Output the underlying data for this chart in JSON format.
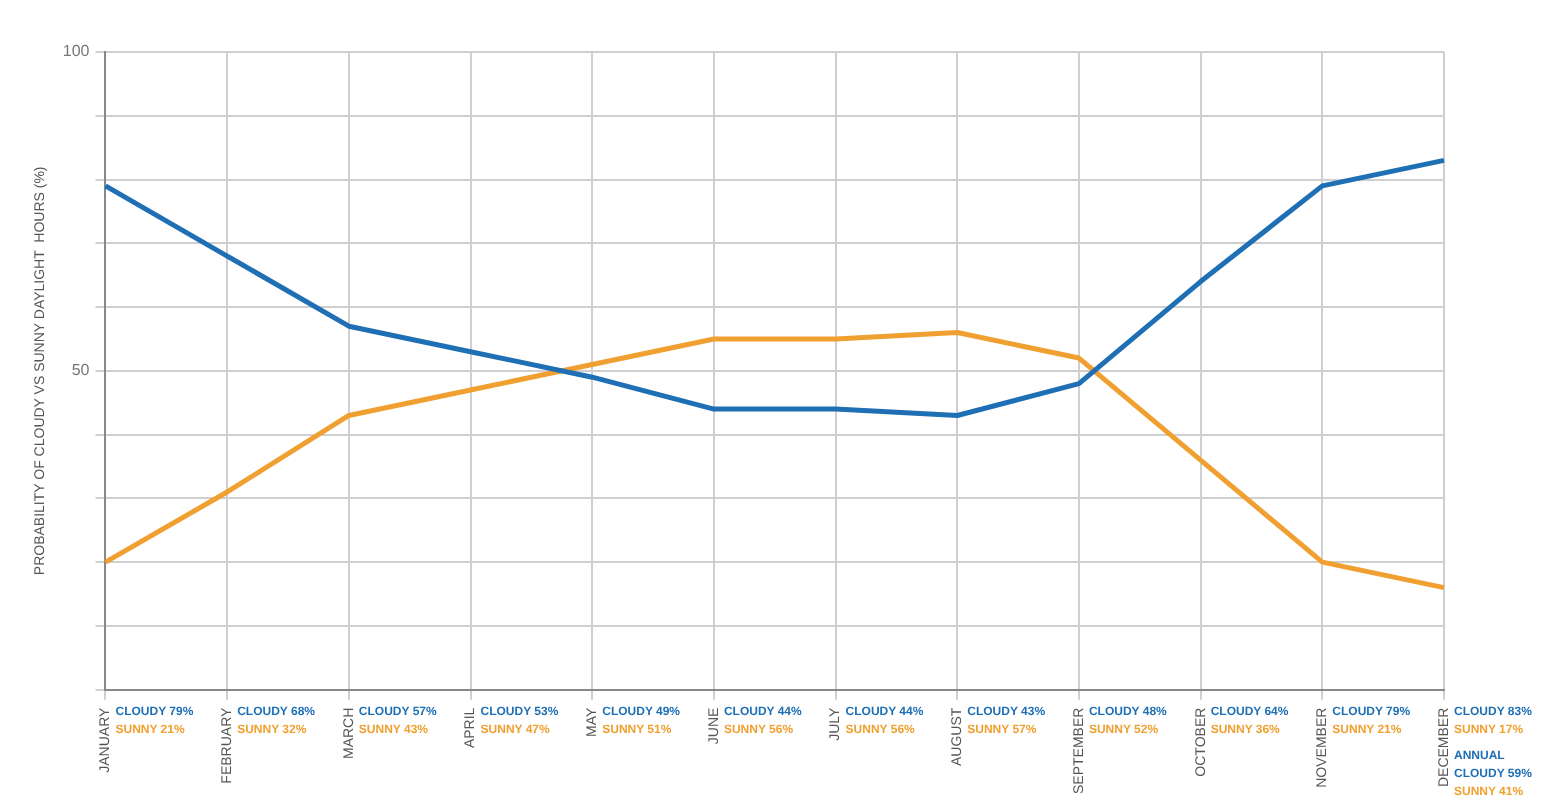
{
  "chart_data": {
    "type": "line",
    "ylabel": "PROBABILITY OF CLOUDY VS SUNNY DAYLIGHT  HOURS (%)",
    "categories": [
      "JANUARY",
      "FEBRUARY",
      "MARCH",
      "APRIL",
      "MAY",
      "JUNE",
      "JULY",
      "AUGUST",
      "SEPTEMBER",
      "OCTOBER",
      "NOVEMBER",
      "DECEMBER"
    ],
    "series": [
      {
        "color": "#1f6fb5",
        "values": [
          79,
          68,
          57,
          53,
          49,
          44,
          44,
          43,
          48,
          64,
          79,
          83
        ],
        "value_labels": [
          "CLOUDY 79%",
          "CLOUDY 68%",
          "CLOUDY 57%",
          "CLOUDY 53%",
          "CLOUDY 49%",
          "CLOUDY 44%",
          "CLOUDY 44%",
          "CLOUDY 43%",
          "CLOUDY 48%",
          "CLOUDY 64%",
          "CLOUDY 79%",
          "CLOUDY 83%"
        ]
      },
      {
        "color": "#f0a030",
        "values": [
          20,
          31,
          43,
          47,
          51,
          55,
          55,
          56,
          52,
          36,
          20,
          16
        ],
        "value_labels": [
          "SUNNY 21%",
          "SUNNY 32%",
          "SUNNY 43%",
          "SUNNY 47%",
          "SUNNY 51%",
          "SUNNY 56%",
          "SUNNY 56%",
          "SUNNY 57%",
          "SUNNY 52%",
          "SUNNY 36%",
          "SUNNY 21%",
          "SUNNY 17%"
        ]
      }
    ],
    "annotations": [
      "ANNUAL",
      "CLOUDY 59%",
      "SUNNY 41%"
    ],
    "ylim": [
      0,
      100
    ],
    "yticks": [
      {
        "value": 0,
        "label": null
      },
      {
        "value": 10,
        "label": null
      },
      {
        "value": 20,
        "label": null
      },
      {
        "value": 30,
        "label": null
      },
      {
        "value": 40,
        "label": null
      },
      50,
      {
        "value": 60,
        "label": null
      },
      {
        "value": 70,
        "label": null
      },
      {
        "value": 80,
        "label": null
      },
      {
        "value": 90,
        "label": null
      },
      100
    ],
    "grid": true,
    "legend": false,
    "marker": "none",
    "line_style": "solid"
  }
}
